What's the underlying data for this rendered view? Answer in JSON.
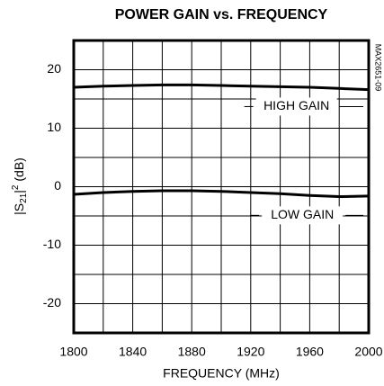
{
  "chart_data": {
    "type": "line",
    "title": "POWER GAIN vs. FREQUENCY",
    "xlabel": "FREQUENCY (MHz)",
    "ylabel": {
      "pre": "|S",
      "sub": "21",
      "mid": "|",
      "sup": "2",
      "post": " (dB)"
    },
    "side_note": "MAX2651-09",
    "x": [
      1800,
      1820,
      1840,
      1860,
      1880,
      1900,
      1920,
      1940,
      1960,
      1980,
      2000
    ],
    "series": [
      {
        "name": "HIGH GAIN",
        "color": "#000000",
        "values": [
          17.0,
          17.2,
          17.3,
          17.4,
          17.4,
          17.3,
          17.2,
          17.1,
          17.0,
          16.8,
          16.6
        ],
        "label_at": [
          1951,
          13.7
        ]
      },
      {
        "name": "LOW GAIN",
        "color": "#000000",
        "values": [
          -1.3,
          -1.0,
          -0.8,
          -0.7,
          -0.7,
          -0.8,
          -1.0,
          -1.2,
          -1.5,
          -1.7,
          -1.6
        ],
        "label_at": [
          1955,
          -4.9
        ]
      }
    ],
    "xlim": [
      1800,
      2000
    ],
    "ylim": [
      -25,
      25
    ],
    "xticks": [
      1800,
      1840,
      1880,
      1920,
      1960,
      2000
    ],
    "yticks": [
      -20,
      -10,
      0,
      10,
      20
    ],
    "xgrid_minor": [
      1820,
      1860,
      1900,
      1940,
      1980
    ],
    "ygrid_minor": [
      -15,
      -5,
      5,
      15
    ],
    "grid": true
  }
}
